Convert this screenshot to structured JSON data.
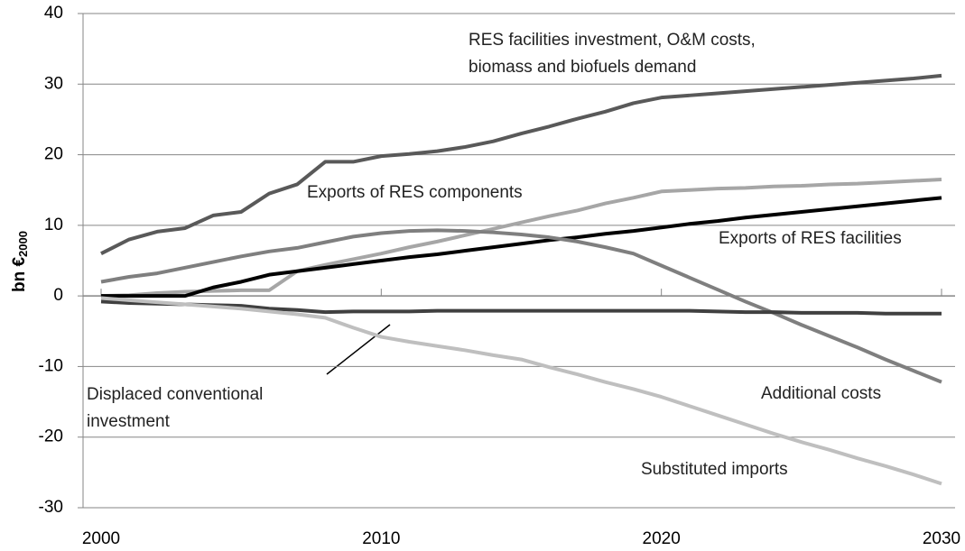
{
  "chart_data": {
    "type": "line",
    "y_label": "bn €",
    "y_label_subscript": "2000",
    "x": [
      2000,
      2001,
      2002,
      2003,
      2004,
      2005,
      2006,
      2007,
      2008,
      2009,
      2010,
      2011,
      2012,
      2013,
      2014,
      2015,
      2016,
      2017,
      2018,
      2019,
      2020,
      2021,
      2022,
      2023,
      2024,
      2025,
      2026,
      2027,
      2028,
      2029,
      2030
    ],
    "xlim": [
      2000,
      2030
    ],
    "xticks": [
      2000,
      2010,
      2020,
      2030
    ],
    "ylim": [
      -30,
      40
    ],
    "yticks": [
      -30,
      -20,
      -10,
      0,
      10,
      20,
      30,
      40
    ],
    "grid": true,
    "series": [
      {
        "name": "RES facilities investment, O&M costs, biomass and biofuels demand",
        "color": "#595959",
        "values": [
          6,
          8,
          9.1,
          9.6,
          11.4,
          11.9,
          14.5,
          15.8,
          19,
          19,
          19.8,
          20.1,
          20.5,
          21.1,
          21.9,
          23,
          24,
          25.1,
          26.1,
          27.3,
          28.1,
          28.4,
          28.7,
          29,
          29.3,
          29.6,
          29.9,
          30.2,
          30.5,
          30.8,
          31.2
        ]
      },
      {
        "name": "Exports of RES components",
        "color": "#a6a6a6",
        "values": [
          0,
          0.1,
          0.4,
          0.6,
          0.7,
          0.8,
          0.8,
          3.5,
          4.4,
          5.2,
          6,
          6.9,
          7.7,
          8.6,
          9.5,
          10.4,
          11.3,
          12.1,
          13.1,
          13.9,
          14.8,
          15,
          15.2,
          15.3,
          15.5,
          15.6,
          15.8,
          15.9,
          16.1,
          16.3,
          16.5
        ]
      },
      {
        "name": "Exports of RES facilities",
        "color": "#000000",
        "values": [
          0,
          0,
          0,
          0,
          1.2,
          2,
          3,
          3.5,
          4,
          4.5,
          5,
          5.5,
          5.9,
          6.4,
          6.9,
          7.4,
          7.9,
          8.3,
          8.8,
          9.2,
          9.7,
          10.2,
          10.6,
          11.1,
          11.5,
          11.9,
          12.3,
          12.7,
          13.1,
          13.5,
          13.9
        ]
      },
      {
        "name": "Additional costs",
        "color": "#7f7f7f",
        "values": [
          2,
          2.7,
          3.2,
          4,
          4.8,
          5.6,
          6.3,
          6.8,
          7.6,
          8.4,
          8.9,
          9.2,
          9.3,
          9.2,
          9,
          8.7,
          8.3,
          7.7,
          6.9,
          6,
          4.3,
          2.6,
          0.9,
          -0.8,
          -2.4,
          -4.1,
          -5.7,
          -7.3,
          -9,
          -10.6,
          -12.2
        ]
      },
      {
        "name": "Displaced conventional investment",
        "color": "#404040",
        "values": [
          -0.8,
          -1,
          -1.1,
          -1.2,
          -1.3,
          -1.4,
          -1.8,
          -2,
          -2.3,
          -2.2,
          -2.2,
          -2.2,
          -2.1,
          -2.1,
          -2.1,
          -2.1,
          -2.1,
          -2.1,
          -2.1,
          -2.1,
          -2.1,
          -2.1,
          -2.2,
          -2.3,
          -2.3,
          -2.4,
          -2.4,
          -2.4,
          -2.5,
          -2.5,
          -2.5
        ]
      },
      {
        "name": "Substituted imports",
        "color": "#bfbfbf",
        "values": [
          -0.3,
          -0.6,
          -0.9,
          -1.2,
          -1.5,
          -1.8,
          -2.2,
          -2.6,
          -3.1,
          -4.5,
          -5.8,
          -6.5,
          -7.1,
          -7.7,
          -8.4,
          -9,
          -10.1,
          -11.1,
          -12.2,
          -13.2,
          -14.3,
          -15.6,
          -16.9,
          -18.2,
          -19.5,
          -20.7,
          -21.8,
          -23,
          -24.1,
          -25.3,
          -26.6
        ]
      }
    ]
  }
}
